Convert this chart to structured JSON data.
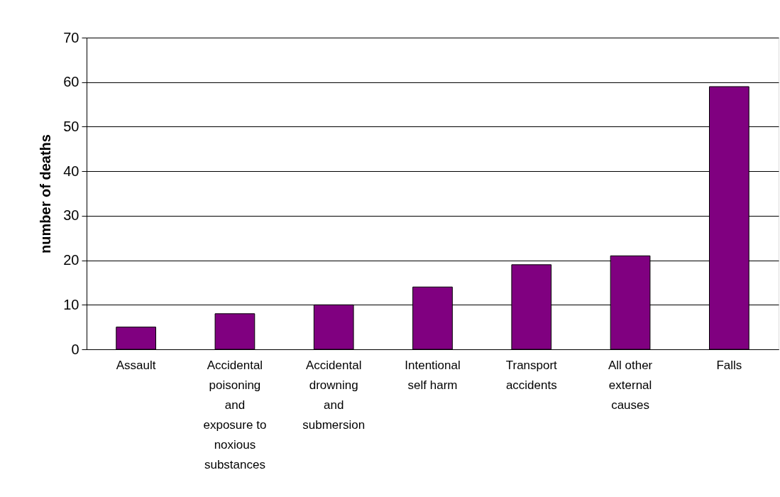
{
  "chart_data": {
    "type": "bar",
    "ylabel": "number of deaths",
    "categories": [
      "Assault",
      "Accidental poisoning and exposure to noxious substances",
      "Accidental drowning and submersion",
      "Intentional self harm",
      "Transport accidents",
      "All other external causes",
      "Falls"
    ],
    "values": [
      5,
      8,
      10,
      14,
      19,
      21,
      59
    ],
    "color": "#800080",
    "ylim": [
      0,
      70
    ],
    "yticks": [
      0,
      10,
      20,
      30,
      40,
      50,
      60,
      70
    ],
    "grid": "y"
  }
}
